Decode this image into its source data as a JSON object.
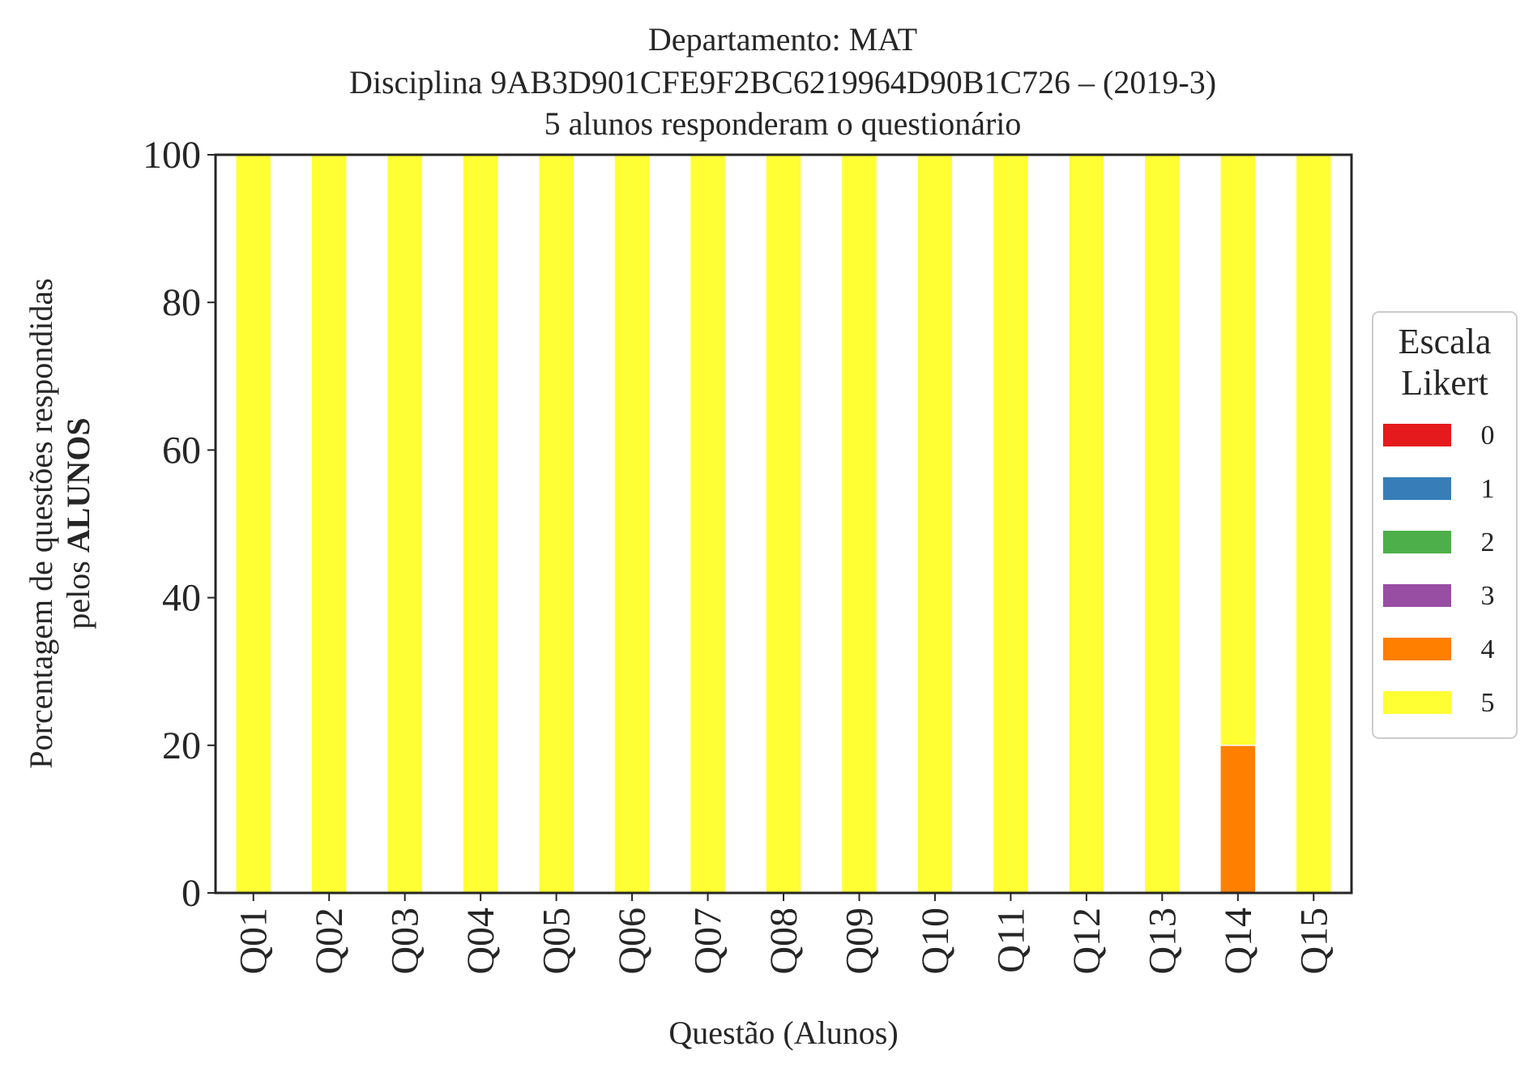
{
  "chart_data": {
    "type": "bar",
    "stacked": true,
    "title_lines": [
      "Departamento: MAT",
      "Disciplina 9AB3D901CFE9F2BC6219964D90B1C726 – (2019-3)",
      "5 alunos responderam o questionário"
    ],
    "xlabel": "Questão (Alunos)",
    "ylabel_line1": "Porcentagem de questões respondidas",
    "ylabel_line2_prefix": "pelos ",
    "ylabel_line2_bold": "ALUNOS",
    "ylim": [
      0,
      100
    ],
    "yticks": [
      "0",
      "20",
      "40",
      "60",
      "80",
      "100"
    ],
    "grid": false,
    "categories": [
      "Q01",
      "Q02",
      "Q03",
      "Q04",
      "Q05",
      "Q06",
      "Q07",
      "Q08",
      "Q09",
      "Q10",
      "Q11",
      "Q12",
      "Q13",
      "Q14",
      "Q15"
    ],
    "legend": {
      "title_line1": "Escala",
      "title_line2": "Likert",
      "placement": "right"
    },
    "series": [
      {
        "name": "0",
        "color": "#e41a1c",
        "values": [
          0,
          0,
          0,
          0,
          0,
          0,
          0,
          0,
          0,
          0,
          0,
          0,
          0,
          0,
          0
        ]
      },
      {
        "name": "1",
        "color": "#377eb8",
        "values": [
          0,
          0,
          0,
          0,
          0,
          0,
          0,
          0,
          0,
          0,
          0,
          0,
          0,
          0,
          0
        ]
      },
      {
        "name": "2",
        "color": "#4daf4a",
        "values": [
          0,
          0,
          0,
          0,
          0,
          0,
          0,
          0,
          0,
          0,
          0,
          0,
          0,
          0,
          0
        ]
      },
      {
        "name": "3",
        "color": "#984ea3",
        "values": [
          0,
          0,
          0,
          0,
          0,
          0,
          0,
          0,
          0,
          0,
          0,
          0,
          0,
          0,
          0
        ]
      },
      {
        "name": "4",
        "color": "#ff7f00",
        "values": [
          0,
          0,
          0,
          0,
          0,
          0,
          0,
          0,
          0,
          0,
          0,
          0,
          0,
          20,
          0
        ]
      },
      {
        "name": "5",
        "color": "#ffff33",
        "values": [
          100,
          100,
          100,
          100,
          100,
          100,
          100,
          100,
          100,
          100,
          100,
          100,
          100,
          80,
          100
        ]
      }
    ]
  }
}
